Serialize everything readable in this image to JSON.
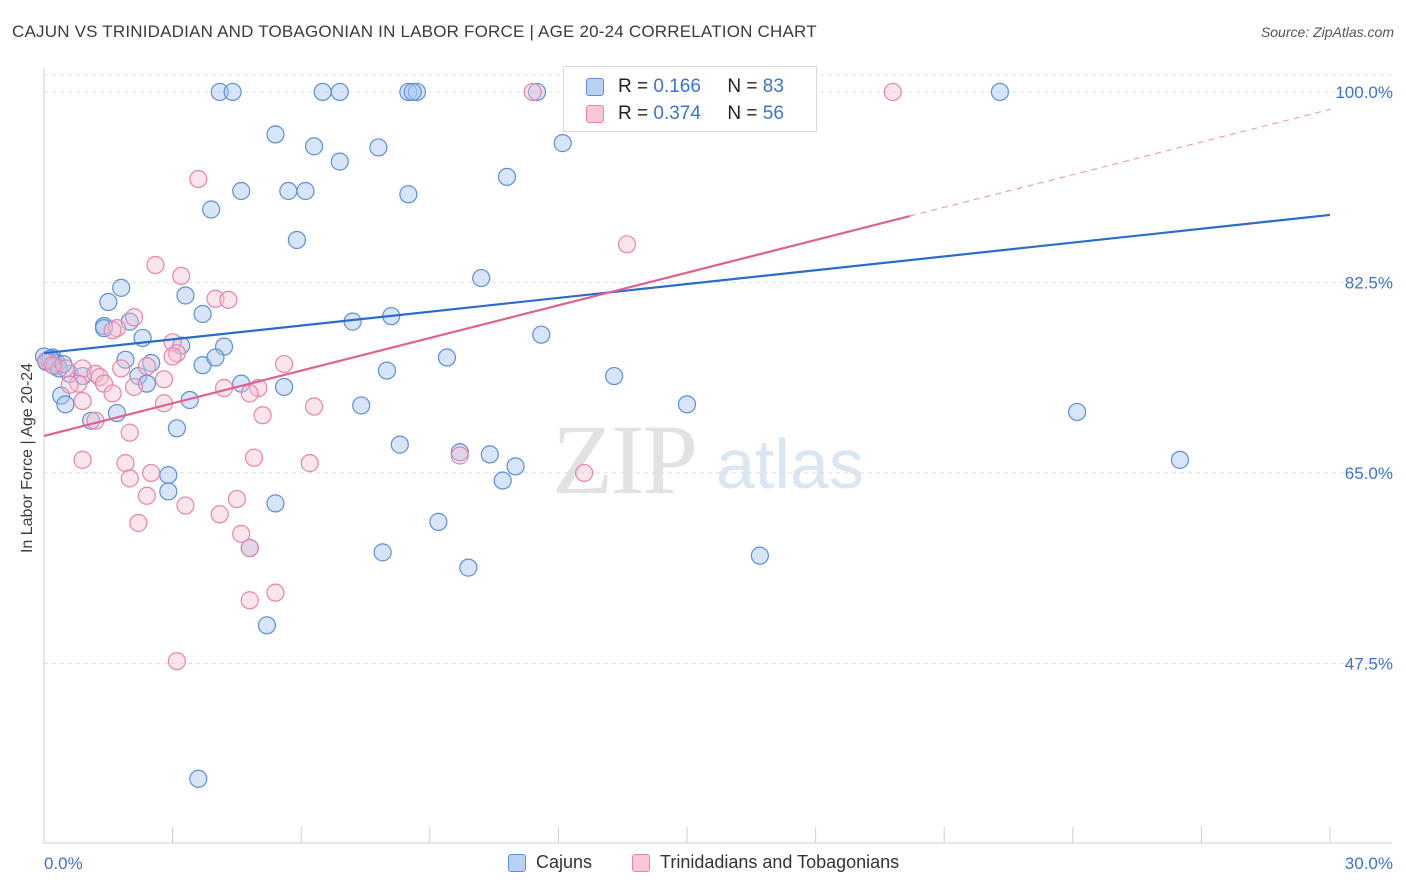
{
  "header": {
    "title": "CAJUN VS TRINIDADIAN AND TOBAGONIAN IN LABOR FORCE | AGE 20-24 CORRELATION CHART",
    "source": "Source: ZipAtlas.com"
  },
  "watermark": {
    "zip": "ZIP",
    "atlas": "atlas"
  },
  "legend": {
    "rows": [
      {
        "r_label": "R =",
        "r_value": "0.166",
        "n_label": "N =",
        "n_value": "83"
      },
      {
        "r_label": "R =",
        "r_value": "0.374",
        "n_label": "N =",
        "n_value": "56"
      }
    ]
  },
  "bottom_legend": {
    "cajuns": "Cajuns",
    "trinidadians": "Trinidadians and Tobagonians"
  },
  "chart_data": {
    "type": "scatter",
    "title": "CAJUN VS TRINIDADIAN AND TOBAGONIAN IN LABOR FORCE | AGE 20-24 CORRELATION CHART",
    "xlabel": "",
    "ylabel": "In Labor Force | Age 20-24",
    "xlim": [
      0,
      30
    ],
    "ylim": [
      31,
      102.2
    ],
    "x_tick_labels": [
      "0.0%",
      "30.0%"
    ],
    "y_ticks": [
      47.5,
      65.0,
      82.5,
      100.0
    ],
    "y_tick_labels": [
      "47.5%",
      "65.0%",
      "82.5%",
      "100.0%"
    ],
    "grid": true,
    "legend_position": "top-center",
    "colors": {
      "cajuns_fill": "#a9c6ef",
      "cajuns_stroke": "#5b8fd6",
      "cajuns_line": "#2a6cc9",
      "trin_fill": "#f6bdd0",
      "trin_stroke": "#e884a6",
      "trin_line": "#e0608f",
      "tick_text": "#3b74c9"
    },
    "series": [
      {
        "name": "Cajuns",
        "r": 0.166,
        "n": 83,
        "trend": {
          "x": [
            0,
            30
          ],
          "y": [
            76.0,
            88.7
          ]
        },
        "points": [
          [
            4.1,
            100
          ],
          [
            4.4,
            100
          ],
          [
            6.5,
            100
          ],
          [
            6.9,
            100
          ],
          [
            8.5,
            100
          ],
          [
            8.7,
            100
          ],
          [
            8.6,
            100
          ],
          [
            11.5,
            100
          ],
          [
            14.8,
            100
          ],
          [
            22.3,
            100
          ],
          [
            12.1,
            95.3
          ],
          [
            5.4,
            96.1
          ],
          [
            6.3,
            95
          ],
          [
            7.8,
            94.9
          ],
          [
            6.9,
            93.6
          ],
          [
            10.8,
            92.2
          ],
          [
            3.9,
            89.2
          ],
          [
            4.6,
            90.9
          ],
          [
            5.7,
            90.9
          ],
          [
            6.1,
            90.9
          ],
          [
            8.5,
            90.6
          ],
          [
            5.9,
            86.4
          ],
          [
            1.8,
            82
          ],
          [
            3.3,
            81.3
          ],
          [
            10.2,
            82.9
          ],
          [
            1.5,
            80.7
          ],
          [
            3.7,
            79.6
          ],
          [
            7.2,
            78.9
          ],
          [
            8.1,
            79.4
          ],
          [
            1.4,
            78.5
          ],
          [
            1.4,
            78.3
          ],
          [
            2.0,
            78.9
          ],
          [
            2.3,
            77.4
          ],
          [
            11.6,
            77.7
          ],
          [
            3.2,
            76.7
          ],
          [
            4.2,
            76.6
          ],
          [
            9.4,
            75.6
          ],
          [
            1.9,
            75.4
          ],
          [
            2.5,
            75.1
          ],
          [
            3.7,
            74.9
          ],
          [
            4.0,
            75.6
          ],
          [
            8.0,
            74.4
          ],
          [
            0.1,
            75.4
          ],
          [
            0.2,
            75.6
          ],
          [
            0.3,
            75.1
          ],
          [
            0.6,
            74.1
          ],
          [
            0.9,
            73.9
          ],
          [
            2.2,
            73.9
          ],
          [
            2.4,
            73.2
          ],
          [
            4.6,
            73.2
          ],
          [
            5.6,
            72.9
          ],
          [
            13.3,
            73.9
          ],
          [
            0.4,
            72.1
          ],
          [
            3.4,
            71.7
          ],
          [
            7.4,
            71.2
          ],
          [
            0.5,
            71.3
          ],
          [
            1.7,
            70.5
          ],
          [
            15.0,
            71.3
          ],
          [
            24.1,
            70.6
          ],
          [
            1.1,
            69.8
          ],
          [
            3.1,
            69.1
          ],
          [
            8.3,
            67.6
          ],
          [
            9.7,
            66.9
          ],
          [
            10.4,
            66.7
          ],
          [
            11.0,
            65.6
          ],
          [
            10.7,
            64.3
          ],
          [
            26.5,
            66.2
          ],
          [
            2.9,
            64.8
          ],
          [
            2.9,
            63.3
          ],
          [
            5.4,
            62.2
          ],
          [
            9.2,
            60.5
          ],
          [
            4.8,
            58.1
          ],
          [
            7.9,
            57.7
          ],
          [
            9.9,
            56.3
          ],
          [
            16.7,
            57.4
          ],
          [
            5.2,
            51.0
          ],
          [
            3.6,
            36.9
          ],
          [
            0.0,
            75.7
          ],
          [
            0.15,
            75.5
          ],
          [
            0.05,
            75.2
          ],
          [
            0.25,
            74.8
          ],
          [
            0.35,
            74.6
          ],
          [
            0.45,
            75.0
          ]
        ]
      },
      {
        "name": "Trinidadians and Tobagonians",
        "r": 0.374,
        "n": 56,
        "trend": {
          "x": [
            0,
            20.2
          ],
          "y": [
            68.4,
            88.6
          ]
        },
        "trend_extension": {
          "x": [
            20.2,
            30
          ],
          "y": [
            88.6,
            98.4
          ]
        },
        "points": [
          [
            11.4,
            100
          ],
          [
            19.8,
            100
          ],
          [
            3.6,
            92.0
          ],
          [
            13.6,
            86.0
          ],
          [
            2.6,
            84.1
          ],
          [
            3.2,
            83.1
          ],
          [
            4.0,
            81.0
          ],
          [
            4.3,
            80.9
          ],
          [
            2.1,
            79.3
          ],
          [
            1.7,
            78.3
          ],
          [
            1.6,
            78.1
          ],
          [
            3.0,
            77.0
          ],
          [
            3.1,
            76.0
          ],
          [
            3.0,
            75.7
          ],
          [
            5.6,
            75.0
          ],
          [
            2.4,
            74.8
          ],
          [
            1.8,
            74.6
          ],
          [
            0.5,
            74.6
          ],
          [
            0.9,
            74.6
          ],
          [
            1.2,
            74.1
          ],
          [
            1.3,
            73.8
          ],
          [
            2.8,
            73.6
          ],
          [
            0.8,
            73.2
          ],
          [
            1.4,
            73.2
          ],
          [
            0.6,
            73.1
          ],
          [
            2.1,
            72.9
          ],
          [
            4.2,
            72.8
          ],
          [
            5.0,
            72.8
          ],
          [
            4.8,
            72.3
          ],
          [
            1.6,
            72.3
          ],
          [
            0.9,
            71.6
          ],
          [
            2.8,
            71.4
          ],
          [
            6.3,
            71.1
          ],
          [
            5.1,
            70.3
          ],
          [
            1.2,
            69.8
          ],
          [
            2.0,
            68.7
          ],
          [
            9.7,
            66.6
          ],
          [
            0.9,
            66.2
          ],
          [
            4.9,
            66.4
          ],
          [
            6.2,
            65.9
          ],
          [
            1.9,
            65.9
          ],
          [
            2.5,
            65.0
          ],
          [
            12.6,
            65.0
          ],
          [
            2.0,
            64.5
          ],
          [
            2.4,
            62.9
          ],
          [
            4.5,
            62.6
          ],
          [
            3.3,
            62.0
          ],
          [
            4.1,
            61.2
          ],
          [
            2.2,
            60.4
          ],
          [
            4.6,
            59.4
          ],
          [
            4.8,
            58.1
          ],
          [
            5.4,
            54.0
          ],
          [
            4.8,
            53.3
          ],
          [
            3.1,
            47.7
          ],
          [
            0.05,
            75.3
          ],
          [
            0.2,
            74.9
          ]
        ]
      }
    ]
  }
}
